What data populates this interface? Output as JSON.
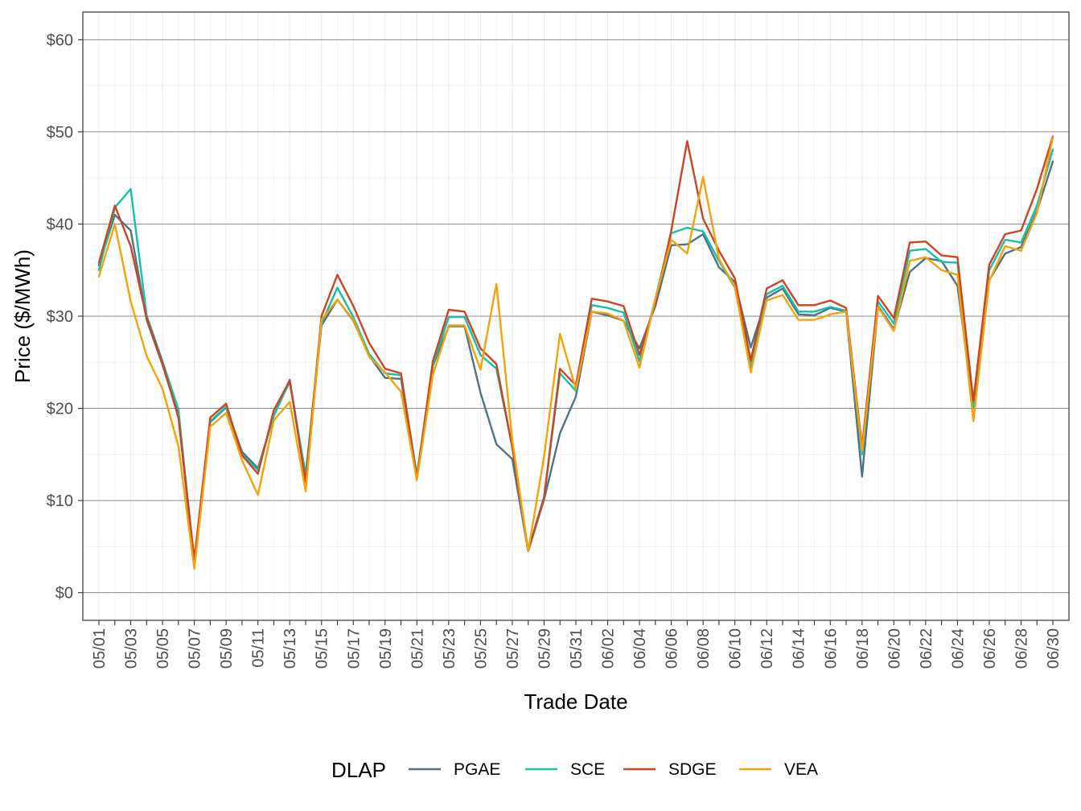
{
  "chart_data": {
    "type": "line",
    "title": "",
    "xlabel": "Trade Date",
    "ylabel": "Price ($/MWh)",
    "ylim": [
      -3,
      63
    ],
    "y_ticks": [
      0,
      10,
      20,
      30,
      40,
      50,
      60
    ],
    "y_tick_labels": [
      "$0",
      "$10",
      "$20",
      "$30",
      "$40",
      "$50",
      "$60"
    ],
    "x_tick_labels": [
      "05/01",
      "05/03",
      "05/05",
      "05/07",
      "05/09",
      "05/11",
      "05/13",
      "05/15",
      "05/17",
      "05/19",
      "05/21",
      "05/23",
      "05/25",
      "05/27",
      "05/29",
      "05/31",
      "06/02",
      "06/04",
      "06/06",
      "06/08",
      "06/10",
      "06/12",
      "06/14",
      "06/16",
      "06/18",
      "06/20",
      "06/22",
      "06/24",
      "06/26",
      "06/28",
      "06/30"
    ],
    "grid": true,
    "legend": {
      "title": "DLAP",
      "position": "bottom"
    },
    "x": [
      "05/01",
      "05/02",
      "05/03",
      "05/04",
      "05/05",
      "05/06",
      "05/07",
      "05/08",
      "05/09",
      "05/10",
      "05/11",
      "05/12",
      "05/13",
      "05/14",
      "05/15",
      "05/16",
      "05/17",
      "05/18",
      "05/19",
      "05/20",
      "05/21",
      "05/22",
      "05/23",
      "05/24",
      "05/25",
      "05/26",
      "05/27",
      "05/28",
      "05/29",
      "05/30",
      "05/31",
      "06/01",
      "06/02",
      "06/03",
      "06/04",
      "06/05",
      "06/06",
      "06/07",
      "06/08",
      "06/09",
      "06/10",
      "06/11",
      "06/12",
      "06/13",
      "06/14",
      "06/15",
      "06/16",
      "06/17",
      "06/18",
      "06/19",
      "06/20",
      "06/21",
      "06/22",
      "06/23",
      "06/24",
      "06/25",
      "06/26",
      "06/27",
      "06/28",
      "06/29",
      "06/30"
    ],
    "series": [
      {
        "name": "PGAE",
        "color": "#4e7384",
        "values": [
          35.5,
          41.0,
          39.3,
          29.6,
          24.7,
          19.2,
          3.0,
          18.5,
          20.1,
          15.3,
          13.5,
          19.2,
          23.1,
          12.4,
          29.0,
          31.8,
          29.5,
          25.7,
          23.3,
          23.2,
          12.5,
          24.6,
          28.9,
          28.9,
          21.7,
          16.1,
          14.5,
          4.5,
          10.1,
          17.3,
          21.3,
          30.5,
          30.1,
          29.5,
          26.5,
          31.1,
          37.7,
          37.8,
          38.9,
          35.3,
          33.7,
          26.6,
          32.0,
          33.0,
          30.2,
          30.1,
          30.9,
          30.5,
          12.6,
          31.1,
          28.6,
          34.8,
          36.3,
          36.0,
          33.3,
          20.3,
          33.9,
          36.8,
          37.5,
          41.4,
          46.8
        ]
      },
      {
        "name": "SCE",
        "color": "#14bfad",
        "values": [
          35.0,
          41.8,
          43.8,
          30.1,
          25.1,
          19.9,
          3.3,
          18.6,
          20.2,
          15.0,
          13.3,
          19.2,
          22.9,
          12.8,
          29.2,
          33.1,
          29.9,
          25.9,
          23.8,
          23.6,
          12.8,
          24.7,
          29.9,
          29.9,
          25.8,
          24.3,
          15.8,
          4.5,
          10.3,
          23.8,
          21.9,
          31.2,
          30.9,
          30.4,
          25.1,
          31.9,
          39.0,
          39.6,
          39.2,
          36.0,
          33.1,
          24.5,
          32.4,
          33.3,
          30.5,
          30.5,
          31.0,
          30.6,
          15.0,
          31.6,
          29.2,
          37.1,
          37.3,
          35.9,
          35.8,
          20.0,
          35.0,
          38.3,
          38.0,
          42.0,
          48.1
        ]
      },
      {
        "name": "SDGE",
        "color": "#cc4422",
        "values": [
          35.8,
          42.0,
          37.6,
          29.8,
          24.9,
          19.0,
          3.6,
          19.0,
          20.5,
          14.9,
          12.9,
          19.8,
          23.0,
          12.0,
          30.0,
          34.5,
          31.1,
          27.1,
          24.3,
          23.8,
          12.4,
          25.1,
          30.7,
          30.5,
          26.5,
          24.8,
          15.8,
          4.6,
          10.4,
          24.3,
          22.5,
          31.9,
          31.6,
          31.1,
          25.8,
          31.5,
          39.3,
          49.0,
          40.6,
          37.1,
          34.1,
          25.2,
          33.0,
          33.9,
          31.2,
          31.2,
          31.7,
          30.9,
          15.8,
          32.2,
          29.8,
          38.0,
          38.1,
          36.6,
          36.4,
          20.8,
          35.6,
          38.9,
          39.3,
          43.8,
          49.5
        ]
      },
      {
        "name": "VEA",
        "color": "#f5a10a",
        "values": [
          34.3,
          40.0,
          31.6,
          25.7,
          22.1,
          15.9,
          2.6,
          18.0,
          19.5,
          14.4,
          10.6,
          18.7,
          20.7,
          11.0,
          29.6,
          31.8,
          29.6,
          25.6,
          23.9,
          21.8,
          12.2,
          23.6,
          29.0,
          29.0,
          24.2,
          33.5,
          16.6,
          4.5,
          14.8,
          28.1,
          22.1,
          30.5,
          30.3,
          29.5,
          24.4,
          31.9,
          38.3,
          36.8,
          45.1,
          36.2,
          33.2,
          23.9,
          31.7,
          32.3,
          29.6,
          29.6,
          30.2,
          30.5,
          15.4,
          31.0,
          28.4,
          36.0,
          36.4,
          35.0,
          34.5,
          18.6,
          33.8,
          37.6,
          37.1,
          41.2,
          49.4
        ]
      }
    ]
  }
}
